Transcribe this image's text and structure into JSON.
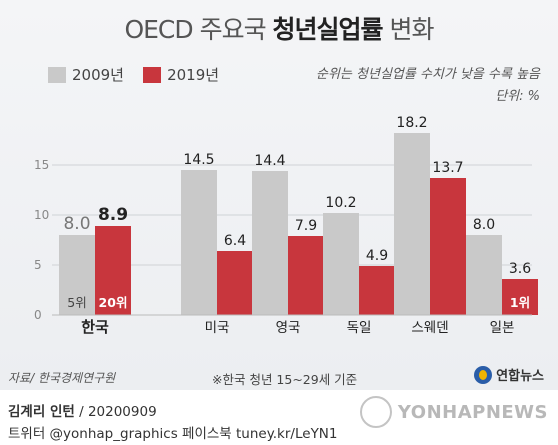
{
  "title_light": "OECD 주요국",
  "title_bold": "청년실업률",
  "title_tail": "변화",
  "legend": [
    {
      "label": "2009년",
      "color": "#c9c9c9"
    },
    {
      "label": "2019년",
      "color": "#c8363d"
    }
  ],
  "note_line1": "순위는 청년실업률 수치가 낮을 수록 높음",
  "note_line2": "단위: %",
  "chart_data": {
    "type": "bar",
    "categories": [
      "한국",
      "미국",
      "영국",
      "독일",
      "스웨덴",
      "일본"
    ],
    "series": [
      {
        "name": "2009년",
        "values": [
          8.0,
          14.5,
          14.4,
          10.2,
          18.2,
          8.0
        ]
      },
      {
        "name": "2019년",
        "values": [
          8.9,
          6.4,
          7.9,
          4.9,
          13.7,
          3.6
        ]
      }
    ],
    "ylim": [
      0,
      20
    ],
    "yticks": [
      "0",
      "5",
      "10",
      "15"
    ],
    "ytick_values": [
      0,
      5,
      10,
      15
    ],
    "grid": true,
    "rank_labels": [
      {
        "category": "한국",
        "series": "2009년",
        "text": "5위"
      },
      {
        "category": "한국",
        "series": "2019년",
        "text": "20위"
      },
      {
        "category": "일본",
        "series": "2019년",
        "text": "1위"
      }
    ],
    "highlight_category": "한국"
  },
  "footer": {
    "source": "자료/ 한국경제연구원",
    "footnote": "※한국 청년 15~29세 기준",
    "logo_text": "연합뉴스",
    "credit_name": "김계리 인턴",
    "credit_date": " / 20200909",
    "credit_line2": "트위터 @yonhap_graphics  페이스북 tuney.kr/LeYN1",
    "brand": "YONHAPNEWS"
  }
}
